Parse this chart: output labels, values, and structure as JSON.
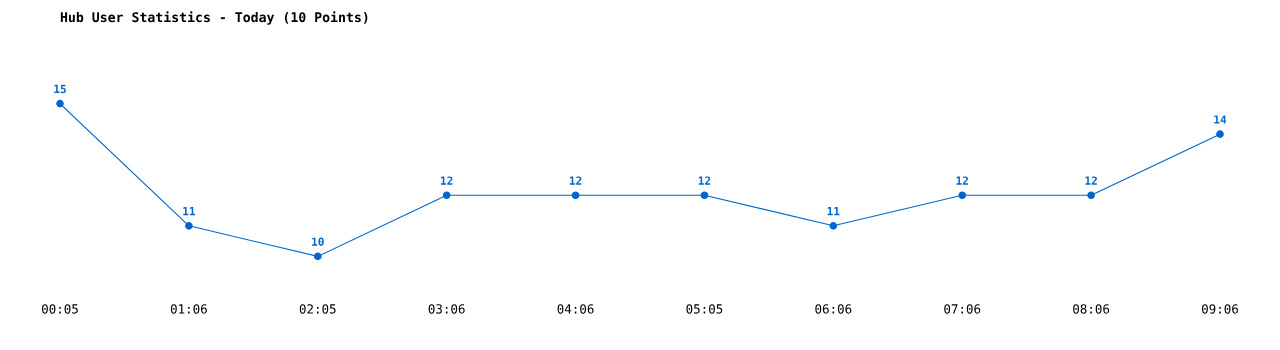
{
  "chart_data": {
    "type": "line",
    "title": "Hub User Statistics - Today (10 Points)",
    "categories": [
      "00:05",
      "01:06",
      "02:05",
      "03:06",
      "04:06",
      "05:05",
      "06:06",
      "07:06",
      "08:06",
      "09:06"
    ],
    "series": [
      {
        "color": "#0066cc",
        "values": [
          15,
          11,
          10,
          12,
          12,
          12,
          11,
          12,
          12,
          14
        ]
      }
    ],
    "data_labels": true,
    "marker": "circle",
    "grid": false,
    "legend": false,
    "tick_labels": "x"
  }
}
